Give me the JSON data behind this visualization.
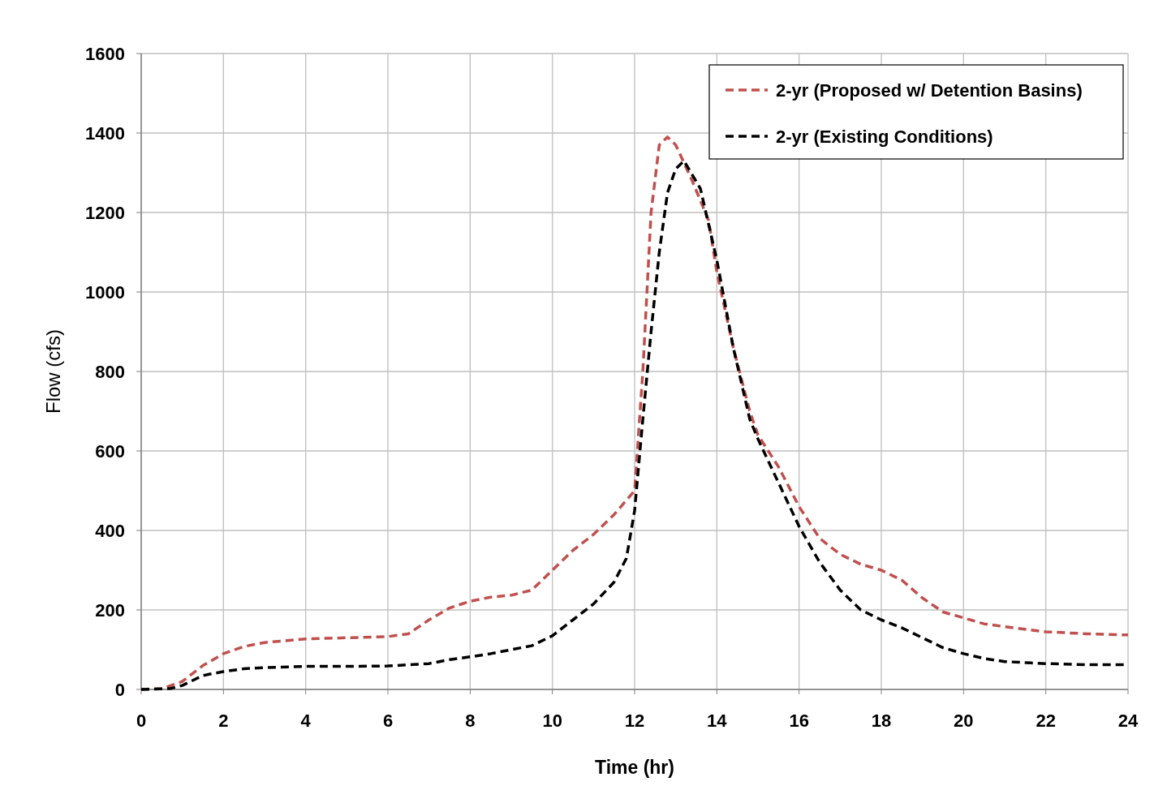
{
  "chart_data": {
    "type": "line",
    "xlabel": "Time (hr)",
    "ylabel": "Flow (cfs)",
    "xlim": [
      0,
      24
    ],
    "xticks": [
      0,
      2,
      4,
      6,
      8,
      10,
      12,
      14,
      16,
      18,
      20,
      22,
      24
    ],
    "ylim": [
      0,
      1600
    ],
    "yticks": [
      0,
      200,
      400,
      600,
      800,
      1000,
      1200,
      1400,
      1600
    ],
    "grid": true,
    "legend": "top right",
    "line_style": "dashed",
    "marker": "none",
    "series": [
      {
        "name": "2-yr (Proposed w/ Detention Basins)",
        "color": "#c0504d",
        "x": [
          0,
          0.5,
          1,
          1.5,
          2,
          2.5,
          3,
          4,
          5,
          6,
          6.5,
          7,
          7.5,
          8,
          8.5,
          9,
          9.5,
          10,
          10.5,
          11,
          11.5,
          12,
          12.2,
          12.4,
          12.6,
          12.8,
          13,
          13.4,
          13.8,
          14,
          14.4,
          14.8,
          15,
          15.5,
          16,
          16.5,
          17,
          17.5,
          18,
          18.5,
          19,
          19.5,
          20,
          20.5,
          21,
          22,
          23,
          24
        ],
        "values": [
          0,
          2,
          20,
          60,
          90,
          108,
          118,
          127,
          130,
          133,
          140,
          175,
          205,
          222,
          232,
          237,
          250,
          300,
          350,
          390,
          440,
          500,
          800,
          1200,
          1370,
          1390,
          1370,
          1280,
          1180,
          1050,
          860,
          700,
          640,
          560,
          460,
          380,
          340,
          315,
          300,
          275,
          230,
          195,
          180,
          165,
          158,
          145,
          140,
          137
        ]
      },
      {
        "name": "2-yr (Existing Conditions)",
        "color": "#000000",
        "x": [
          0,
          0.7,
          1,
          1.5,
          2,
          2.5,
          3,
          4,
          5,
          6,
          7,
          7.5,
          8,
          8.5,
          9,
          9.5,
          10,
          10.5,
          11,
          11.5,
          11.8,
          12,
          12.2,
          12.4,
          12.6,
          12.8,
          13,
          13.2,
          13.6,
          14,
          14.4,
          14.8,
          15,
          15.5,
          16,
          16.5,
          17,
          17.5,
          18,
          18.5,
          19,
          19.5,
          20,
          20.5,
          21,
          22,
          23,
          24
        ],
        "values": [
          0,
          2,
          10,
          35,
          45,
          52,
          55,
          58,
          58,
          59,
          65,
          75,
          82,
          90,
          100,
          110,
          135,
          175,
          215,
          270,
          330,
          450,
          680,
          900,
          1100,
          1250,
          1310,
          1330,
          1260,
          1080,
          860,
          680,
          630,
          520,
          410,
          320,
          250,
          200,
          175,
          155,
          130,
          105,
          90,
          78,
          70,
          65,
          62,
          62
        ]
      }
    ]
  }
}
